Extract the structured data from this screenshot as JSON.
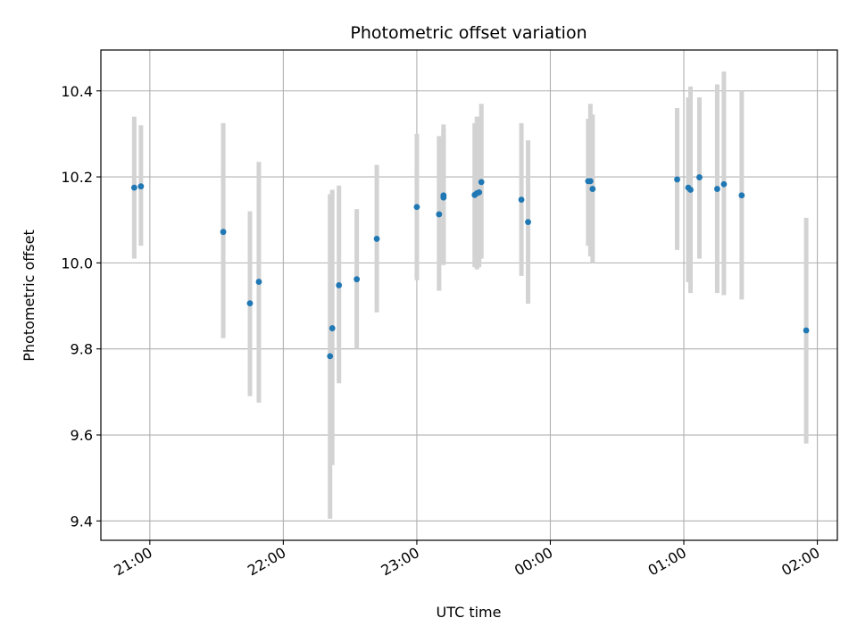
{
  "chart_data": {
    "type": "scatter",
    "title": "Photometric offset variation",
    "xlabel": "UTC time",
    "ylabel": "Photometric offset",
    "x_axis_kind": "time",
    "xlim": [
      "20:38",
      "02:09"
    ],
    "ylim": [
      9.355,
      10.495
    ],
    "grid": true,
    "xticks": [
      "21:00",
      "22:00",
      "23:00",
      "00:00",
      "01:00",
      "02:00"
    ],
    "yticks": [
      "9.4",
      "9.6",
      "9.8",
      "10.0",
      "10.2",
      "10.4"
    ],
    "colors": {
      "point": "#1f77b4",
      "errorbar": "#d3d3d3",
      "grid": "#b0b0b0"
    },
    "points": [
      {
        "x": "20:53",
        "y": 10.175,
        "low": 10.01,
        "high": 10.34
      },
      {
        "x": "20:56",
        "y": 10.178,
        "low": 10.04,
        "high": 10.32
      },
      {
        "x": "21:33",
        "y": 10.072,
        "low": 9.825,
        "high": 10.325
      },
      {
        "x": "21:45",
        "y": 9.906,
        "low": 9.69,
        "high": 10.12
      },
      {
        "x": "21:49",
        "y": 9.956,
        "low": 9.675,
        "high": 10.235
      },
      {
        "x": "22:21",
        "y": 9.783,
        "low": 9.405,
        "high": 10.16
      },
      {
        "x": "22:22",
        "y": 9.848,
        "low": 9.53,
        "high": 10.17
      },
      {
        "x": "22:25",
        "y": 9.948,
        "low": 9.72,
        "high": 10.18
      },
      {
        "x": "22:33",
        "y": 9.962,
        "low": 9.8,
        "high": 10.125
      },
      {
        "x": "22:42",
        "y": 10.056,
        "low": 9.885,
        "high": 10.228
      },
      {
        "x": "23:00",
        "y": 10.13,
        "low": 9.96,
        "high": 10.3
      },
      {
        "x": "23:10",
        "y": 10.113,
        "low": 9.935,
        "high": 10.295
      },
      {
        "x": "23:12",
        "y": 10.157,
        "low": 10.0,
        "high": 10.322
      },
      {
        "x": "23:12",
        "y": 10.152,
        "low": 9.995,
        "high": 10.31
      },
      {
        "x": "23:26",
        "y": 10.158,
        "low": 9.99,
        "high": 10.325
      },
      {
        "x": "23:27",
        "y": 10.162,
        "low": 9.985,
        "high": 10.34
      },
      {
        "x": "23:28",
        "y": 10.164,
        "low": 9.99,
        "high": 10.34
      },
      {
        "x": "23:29",
        "y": 10.188,
        "low": 10.01,
        "high": 10.37
      },
      {
        "x": "23:47",
        "y": 10.147,
        "low": 9.97,
        "high": 10.325
      },
      {
        "x": "23:50",
        "y": 10.095,
        "low": 9.905,
        "high": 10.285
      },
      {
        "x": "00:17",
        "y": 10.19,
        "low": 10.04,
        "high": 10.335
      },
      {
        "x": "00:18",
        "y": 10.19,
        "low": 10.015,
        "high": 10.37
      },
      {
        "x": "00:19",
        "y": 10.172,
        "low": 10.0,
        "high": 10.345
      },
      {
        "x": "00:57",
        "y": 10.194,
        "low": 10.03,
        "high": 10.36
      },
      {
        "x": "01:02",
        "y": 10.175,
        "low": 9.955,
        "high": 10.385
      },
      {
        "x": "01:03",
        "y": 10.17,
        "low": 9.93,
        "high": 10.41
      },
      {
        "x": "01:07",
        "y": 10.199,
        "low": 10.01,
        "high": 10.385
      },
      {
        "x": "01:15",
        "y": 10.172,
        "low": 9.93,
        "high": 10.415
      },
      {
        "x": "01:18",
        "y": 10.183,
        "low": 9.925,
        "high": 10.445
      },
      {
        "x": "01:26",
        "y": 10.157,
        "low": 9.915,
        "high": 10.4
      },
      {
        "x": "01:55",
        "y": 9.843,
        "low": 9.58,
        "high": 10.105
      }
    ]
  }
}
